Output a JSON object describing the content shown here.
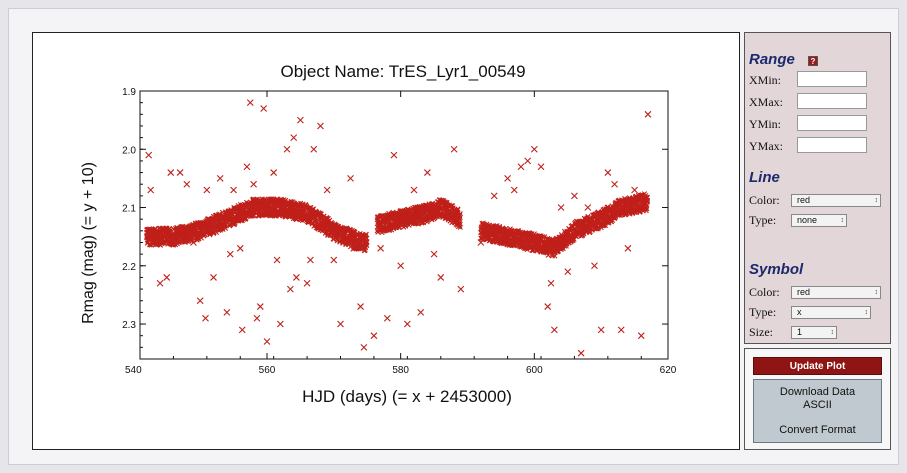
{
  "chart_data": {
    "type": "scatter",
    "title": "Object Name:  TrES_Lyr1_00549",
    "xlabel": "HJD (days)  (= x + 2453000)",
    "ylabel": "Rmag (mag)  (= y + 10)",
    "xlim": [
      541,
      620
    ],
    "ylim": [
      2.36,
      1.9
    ],
    "y_inverted": true,
    "x_ticks": [
      "540",
      "560",
      "580",
      "600",
      "620"
    ],
    "y_ticks": [
      "1.9",
      "2.0",
      "2.1",
      "2.2",
      "2.3"
    ],
    "marker": "x",
    "color": "#c0201a",
    "segments": [
      {
        "x_start": 542,
        "x_end": 575,
        "trend": [
          [
            542,
            2.15
          ],
          [
            546,
            2.15
          ],
          [
            550,
            2.14
          ],
          [
            554,
            2.12
          ],
          [
            558,
            2.1
          ],
          [
            562,
            2.1
          ],
          [
            566,
            2.11
          ],
          [
            570,
            2.14
          ],
          [
            574,
            2.16
          ],
          [
            575,
            2.16
          ]
        ]
      },
      {
        "x_start": 576.5,
        "x_end": 589,
        "trend": [
          [
            576.5,
            2.13
          ],
          [
            580,
            2.12
          ],
          [
            584,
            2.11
          ],
          [
            586,
            2.1
          ],
          [
            589,
            2.12
          ]
        ]
      },
      {
        "x_start": 592,
        "x_end": 617,
        "trend": [
          [
            592,
            2.14
          ],
          [
            596,
            2.15
          ],
          [
            600,
            2.16
          ],
          [
            603,
            2.17
          ],
          [
            606,
            2.14
          ],
          [
            610,
            2.12
          ],
          [
            613,
            2.1
          ],
          [
            617,
            2.09
          ]
        ]
      }
    ],
    "outliers": [
      [
        542.3,
        2.01
      ],
      [
        542.6,
        2.07
      ],
      [
        543.5,
        2.16
      ],
      [
        544,
        2.23
      ],
      [
        545,
        2.22
      ],
      [
        545.6,
        2.04
      ],
      [
        547,
        2.04
      ],
      [
        548,
        2.06
      ],
      [
        549,
        2.16
      ],
      [
        550,
        2.26
      ],
      [
        550.8,
        2.29
      ],
      [
        551,
        2.07
      ],
      [
        552,
        2.22
      ],
      [
        553,
        2.05
      ],
      [
        554,
        2.28
      ],
      [
        554.5,
        2.18
      ],
      [
        555,
        2.07
      ],
      [
        556,
        2.17
      ],
      [
        556.3,
        2.31
      ],
      [
        557,
        2.03
      ],
      [
        557.5,
        1.92
      ],
      [
        558,
        2.06
      ],
      [
        558.5,
        2.29
      ],
      [
        559,
        2.27
      ],
      [
        559.5,
        1.93
      ],
      [
        560,
        2.33
      ],
      [
        561,
        2.04
      ],
      [
        561.5,
        2.19
      ],
      [
        562,
        2.3
      ],
      [
        563,
        2.0
      ],
      [
        563.5,
        2.24
      ],
      [
        564,
        1.98
      ],
      [
        564.4,
        2.22
      ],
      [
        565,
        1.95
      ],
      [
        566,
        2.23
      ],
      [
        566.5,
        2.19
      ],
      [
        567,
        2.0
      ],
      [
        568,
        1.96
      ],
      [
        569,
        2.07
      ],
      [
        570,
        2.19
      ],
      [
        571,
        2.3
      ],
      [
        572,
        2.14
      ],
      [
        572.5,
        2.05
      ],
      [
        573,
        2.17
      ],
      [
        574,
        2.27
      ],
      [
        574.5,
        2.34
      ],
      [
        576,
        2.32
      ],
      [
        577,
        2.17
      ],
      [
        578,
        2.29
      ],
      [
        579,
        2.01
      ],
      [
        580,
        2.2
      ],
      [
        581,
        2.3
      ],
      [
        582,
        2.07
      ],
      [
        583,
        2.28
      ],
      [
        584,
        2.04
      ],
      [
        585,
        2.18
      ],
      [
        586,
        2.22
      ],
      [
        587,
        2.11
      ],
      [
        588,
        2.0
      ],
      [
        589,
        2.24
      ],
      [
        592,
        2.16
      ],
      [
        594,
        2.08
      ],
      [
        596,
        2.05
      ],
      [
        597,
        2.07
      ],
      [
        598,
        2.03
      ],
      [
        599,
        2.02
      ],
      [
        600,
        2.0
      ],
      [
        601,
        2.03
      ],
      [
        602,
        2.27
      ],
      [
        602.5,
        2.23
      ],
      [
        603,
        2.31
      ],
      [
        604,
        2.1
      ],
      [
        605,
        2.21
      ],
      [
        606,
        2.08
      ],
      [
        607,
        2.35
      ],
      [
        608,
        2.1
      ],
      [
        609,
        2.2
      ],
      [
        610,
        2.31
      ],
      [
        611,
        2.04
      ],
      [
        612,
        2.06
      ],
      [
        613,
        2.31
      ],
      [
        614,
        2.17
      ],
      [
        615,
        2.07
      ],
      [
        616,
        2.32
      ],
      [
        617,
        1.94
      ]
    ]
  },
  "controls": {
    "range_header": "Range",
    "range_help": "?",
    "xmin_label": "XMin:",
    "xmax_label": "XMax:",
    "ymin_label": "YMin:",
    "ymax_label": "YMax:",
    "xmin_value": "",
    "xmax_value": "",
    "ymin_value": "",
    "ymax_value": "",
    "line_header": "Line",
    "line_color_label": "Color:",
    "line_color_value": "red",
    "line_type_label": "Type:",
    "line_type_value": "none",
    "symbol_header": "Symbol",
    "symbol_color_label": "Color:",
    "symbol_color_value": "red",
    "symbol_type_label": "Type:",
    "symbol_type_value": "x",
    "symbol_size_label": "Size:",
    "symbol_size_value": "1"
  },
  "actions": {
    "update_label": "Update Plot",
    "download_label_1": "Download Data",
    "download_label_2": "ASCII",
    "convert_label": "Convert Format"
  }
}
